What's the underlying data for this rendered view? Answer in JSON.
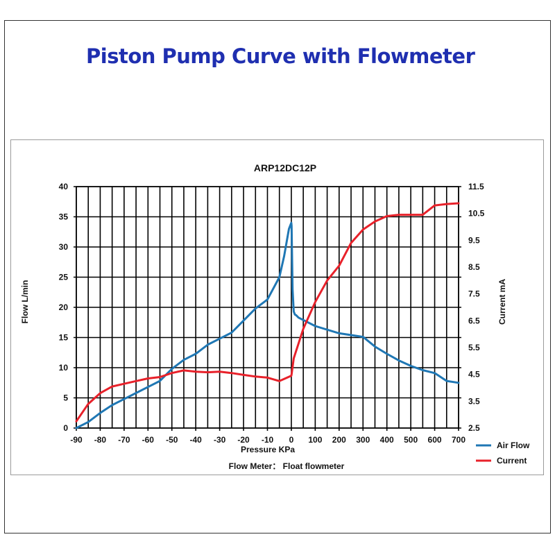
{
  "page": {
    "title": "Piston Pump Curve with Flowmeter"
  },
  "colors": {
    "title": "#1f2fb0",
    "air_flow": "#1f77b4",
    "current": "#e8212a",
    "grid": "#000000"
  },
  "chart_data": {
    "type": "line",
    "title": "ARP12DC12P",
    "xlabel": "Pressure KPa",
    "ylabel": "Flow  L/min",
    "y2label": "Current  mA",
    "note": "Flow Meter：  Float flowmeter",
    "x_categories": [
      "-90",
      "-80",
      "-70",
      "-60",
      "-50",
      "-40",
      "-30",
      "-20",
      "-10",
      "0",
      "100",
      "200",
      "300",
      "400",
      "500",
      "600",
      "700"
    ],
    "ylim": [
      0,
      40
    ],
    "yticks": [
      "0",
      "5",
      "10",
      "15",
      "20",
      "25",
      "30",
      "35",
      "40"
    ],
    "y2lim": [
      2.5,
      11.5
    ],
    "y2ticks": [
      "2.5",
      "3.5",
      "4.5",
      "5.5",
      "6.5",
      "7.5",
      "8.5",
      "9.5",
      "10.5",
      "11.5"
    ],
    "grid": true,
    "legend_position": "bottom-right",
    "series": [
      {
        "name": "Air Flow",
        "axis": "left",
        "color": "#1f77b4",
        "points": [
          [
            -90,
            0
          ],
          [
            -85,
            1
          ],
          [
            -80,
            2.5
          ],
          [
            -75,
            3.8
          ],
          [
            -70,
            4.8
          ],
          [
            -65,
            5.8
          ],
          [
            -60,
            6.8
          ],
          [
            -55,
            7.8
          ],
          [
            -50,
            9.8
          ],
          [
            -45,
            11.3
          ],
          [
            -40,
            12.3
          ],
          [
            -35,
            13.8
          ],
          [
            -30,
            14.8
          ],
          [
            -25,
            15.8
          ],
          [
            -20,
            17.8
          ],
          [
            -15,
            19.8
          ],
          [
            -10,
            21.3
          ],
          [
            -5,
            25
          ],
          [
            -3,
            28.5
          ],
          [
            -1,
            33
          ],
          [
            0,
            34
          ],
          [
            1,
            33.5
          ],
          [
            5,
            23
          ],
          [
            10,
            19.3
          ],
          [
            15,
            18.8
          ],
          [
            20,
            18.7
          ],
          [
            30,
            18.3
          ],
          [
            100,
            16.9
          ],
          [
            200,
            15.7
          ],
          [
            300,
            15.1
          ],
          [
            350,
            13.5
          ],
          [
            400,
            12.3
          ],
          [
            450,
            11.2
          ],
          [
            500,
            10.3
          ],
          [
            550,
            9.6
          ],
          [
            600,
            9.1
          ],
          [
            650,
            7.8
          ],
          [
            700,
            7.5
          ]
        ]
      },
      {
        "name": "Current",
        "axis": "right",
        "color": "#e8212a",
        "points": [
          [
            -90,
            2.75
          ],
          [
            -85,
            3.4
          ],
          [
            -80,
            3.8
          ],
          [
            -75,
            4.05
          ],
          [
            -70,
            4.15
          ],
          [
            -65,
            4.25
          ],
          [
            -60,
            4.35
          ],
          [
            -55,
            4.4
          ],
          [
            -50,
            4.55
          ],
          [
            -45,
            4.65
          ],
          [
            -40,
            4.6
          ],
          [
            -35,
            4.58
          ],
          [
            -30,
            4.6
          ],
          [
            -25,
            4.55
          ],
          [
            -20,
            4.48
          ],
          [
            -15,
            4.42
          ],
          [
            -10,
            4.38
          ],
          [
            -5,
            4.25
          ],
          [
            0,
            4.45
          ],
          [
            1,
            4.5
          ],
          [
            10,
            5.1
          ],
          [
            50,
            6.2
          ],
          [
            100,
            7.2
          ],
          [
            150,
            8.0
          ],
          [
            200,
            8.55
          ],
          [
            250,
            9.4
          ],
          [
            300,
            9.9
          ],
          [
            350,
            10.2
          ],
          [
            400,
            10.4
          ],
          [
            450,
            10.45
          ],
          [
            500,
            10.45
          ],
          [
            550,
            10.45
          ],
          [
            600,
            10.8
          ],
          [
            650,
            10.85
          ],
          [
            700,
            10.88
          ]
        ]
      }
    ]
  }
}
